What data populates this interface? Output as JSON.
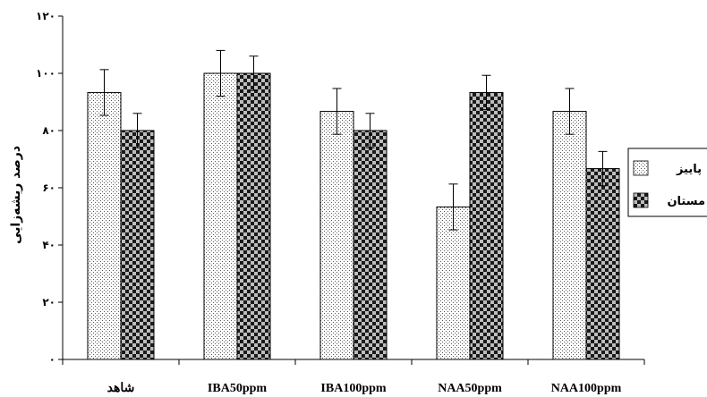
{
  "chart_data": {
    "type": "bar",
    "categories": [
      "شاهد",
      "IBA50ppm",
      "IBA100ppm",
      "NAA50ppm",
      "NAA100ppm"
    ],
    "series": [
      {
        "name": "پاییز",
        "values": [
          93.3,
          100,
          86.7,
          53.3,
          86.7
        ],
        "errors": [
          8,
          8,
          8,
          8,
          8
        ],
        "pattern": "dots"
      },
      {
        "name": "مستان",
        "values": [
          80,
          100,
          80,
          93.3,
          66.7
        ],
        "errors": [
          6,
          6,
          6,
          6,
          6
        ],
        "pattern": "checker"
      }
    ],
    "ylabel": "درصد ریشه‌زایی",
    "ylim": [
      0,
      120
    ],
    "yticks": [
      0,
      20,
      40,
      60,
      80,
      100,
      120
    ],
    "ytick_labels": [
      "۰",
      "۲۰",
      "۴۰",
      "۶۰",
      "۸۰",
      "۱۰۰",
      "۱۲۰"
    ],
    "legend_position": "right",
    "grid": false
  }
}
